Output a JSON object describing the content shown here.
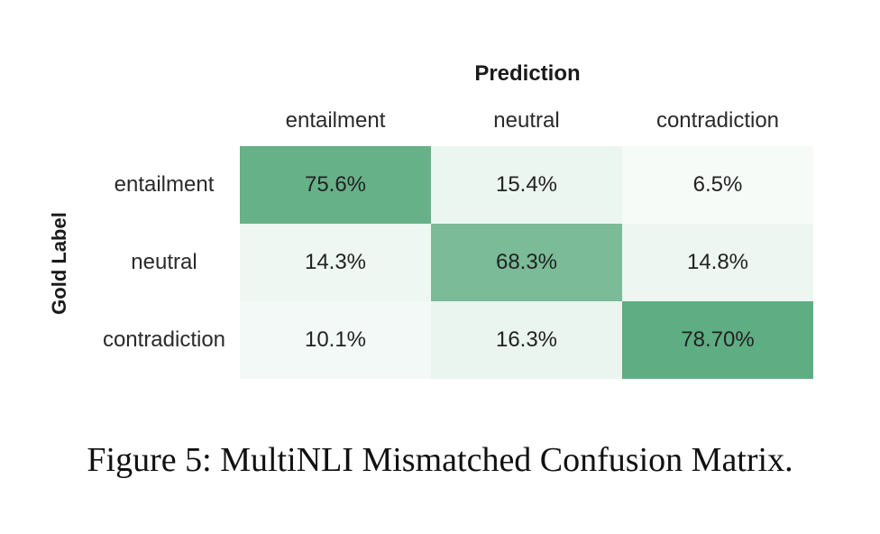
{
  "chart_data": {
    "type": "heatmap",
    "xlabel": "Prediction",
    "ylabel": "Gold Label",
    "x_categories": [
      "entailment",
      "neutral",
      "contradiction"
    ],
    "y_categories": [
      "entailment",
      "neutral",
      "contradiction"
    ],
    "values": [
      [
        75.6,
        15.4,
        6.5
      ],
      [
        14.3,
        68.3,
        14.8
      ],
      [
        10.1,
        16.3,
        78.7
      ]
    ],
    "cell_labels": [
      [
        "75.6%",
        "15.4%",
        "6.5%"
      ],
      [
        "14.3%",
        "68.3%",
        "14.8%"
      ],
      [
        "10.1%",
        "16.3%",
        "78.70%"
      ]
    ],
    "colormap": {
      "low": "#f6fbf8",
      "high": "#5fad83"
    }
  },
  "caption": "Figure 5: MultiNLI Mismatched Confusion Matrix."
}
